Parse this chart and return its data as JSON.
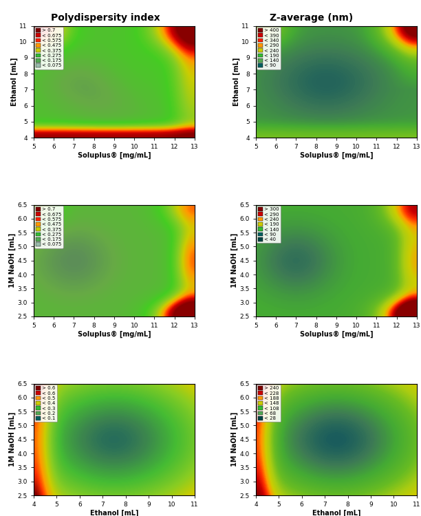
{
  "title_left": "Polydispersity index",
  "title_right": "Z-average (nm)",
  "plots": [
    {
      "row": 0,
      "col": 0,
      "xlabel": "Soluplus® [mg/mL]",
      "ylabel": "Ethanol [mL]",
      "xrange": [
        5,
        13
      ],
      "yrange": [
        4,
        11
      ],
      "xticks": [
        5,
        6,
        7,
        8,
        9,
        10,
        11,
        12,
        13
      ],
      "yticks": [
        4,
        5,
        6,
        7,
        8,
        9,
        10,
        11
      ],
      "legend_labels": [
        "> 0.7",
        "< 0.675",
        "< 0.575",
        "< 0.475",
        "< 0.375",
        "< 0.275",
        "< 0.175",
        "< 0.075"
      ],
      "legend_colors": [
        "#800000",
        "#CC0000",
        "#FF2200",
        "#FF9900",
        "#CCCC00",
        "#33BB33",
        "#55AA55",
        "#99BBAA"
      ],
      "surface_type": "PDI_soluplus_ethanol",
      "vmin": 0.0,
      "vmax": 0.8
    },
    {
      "row": 0,
      "col": 1,
      "xlabel": "Soluplus® [mg/mL]",
      "ylabel": "Ethanol [mL]",
      "xrange": [
        5,
        13
      ],
      "yrange": [
        4,
        11
      ],
      "xticks": [
        5,
        6,
        7,
        8,
        9,
        10,
        11,
        12,
        13
      ],
      "yticks": [
        4,
        5,
        6,
        7,
        8,
        9,
        10,
        11
      ],
      "legend_labels": [
        "> 400",
        "< 390",
        "< 340",
        "< 290",
        "< 240",
        "< 190",
        "< 140",
        "< 90"
      ],
      "legend_colors": [
        "#800000",
        "#CC0000",
        "#FF2200",
        "#FF9900",
        "#CCCC00",
        "#33BB33",
        "#55AA55",
        "#006060"
      ],
      "surface_type": "Zavg_soluplus_ethanol",
      "vmin": 60,
      "vmax": 460
    },
    {
      "row": 1,
      "col": 0,
      "xlabel": "Soluplus® [mg/mL]",
      "ylabel": "1M NaOH [mL]",
      "xrange": [
        5,
        13
      ],
      "yrange": [
        2.5,
        6.5
      ],
      "xticks": [
        5,
        6,
        7,
        8,
        9,
        10,
        11,
        12,
        13
      ],
      "yticks": [
        2.5,
        3,
        3.5,
        4,
        4.5,
        5,
        5.5,
        6,
        6.5
      ],
      "legend_labels": [
        "> 0.7",
        "< 0.675",
        "< 0.575",
        "< 0.475",
        "< 0.375",
        "< 0.275",
        "< 0.175",
        "< 0.075"
      ],
      "legend_colors": [
        "#800000",
        "#CC0000",
        "#FF2200",
        "#FF9900",
        "#CCCC00",
        "#33BB33",
        "#55AA55",
        "#99BBAA"
      ],
      "surface_type": "PDI_soluplus_naoh",
      "vmin": 0.0,
      "vmax": 0.8
    },
    {
      "row": 1,
      "col": 1,
      "xlabel": "Soluplus® [mg/mL]",
      "ylabel": "1M NaOH [mL]",
      "xrange": [
        5,
        13
      ],
      "yrange": [
        2.5,
        6.5
      ],
      "xticks": [
        5,
        6,
        7,
        8,
        9,
        10,
        11,
        12,
        13
      ],
      "yticks": [
        2.5,
        3,
        3.5,
        4,
        4.5,
        5,
        5.5,
        6,
        6.5
      ],
      "legend_labels": [
        "> 300",
        "< 290",
        "< 240",
        "< 190",
        "< 140",
        "< 90",
        "< 40"
      ],
      "legend_colors": [
        "#800000",
        "#CC0000",
        "#FF9900",
        "#CCCC00",
        "#33BB33",
        "#006060",
        "#004444"
      ],
      "surface_type": "Zavg_soluplus_naoh",
      "vmin": 20,
      "vmax": 320
    },
    {
      "row": 2,
      "col": 0,
      "xlabel": "Ethanol [mL]",
      "ylabel": "1M NaOH [mL]",
      "xrange": [
        4,
        11
      ],
      "yrange": [
        2.5,
        6.5
      ],
      "xticks": [
        4,
        5,
        6,
        7,
        8,
        9,
        10,
        11
      ],
      "yticks": [
        2.5,
        3,
        3.5,
        4,
        4.5,
        5,
        5.5,
        6,
        6.5
      ],
      "legend_labels": [
        "> 0.6",
        "< 0.6",
        "< 0.5",
        "< 0.4",
        "< 0.3",
        "< 0.2",
        "< 0.1"
      ],
      "legend_colors": [
        "#800000",
        "#CC0000",
        "#FF9900",
        "#CCCC00",
        "#33BB33",
        "#55AA55",
        "#006060"
      ],
      "surface_type": "PDI_ethanol_naoh",
      "vmin": 0.0,
      "vmax": 0.7
    },
    {
      "row": 2,
      "col": 1,
      "xlabel": "Ethanol [mL]",
      "ylabel": "1M NaOH [mL]",
      "xrange": [
        4,
        11
      ],
      "yrange": [
        2.5,
        6.5
      ],
      "xticks": [
        4,
        5,
        6,
        7,
        8,
        9,
        10,
        11
      ],
      "yticks": [
        2.5,
        3,
        3.5,
        4,
        4.5,
        5,
        5.5,
        6,
        6.5
      ],
      "legend_labels": [
        "> 240",
        "< 228",
        "< 188",
        "< 148",
        "< 108",
        "< 68",
        "< 28"
      ],
      "legend_colors": [
        "#800000",
        "#CC0000",
        "#FF9900",
        "#CCCC00",
        "#33BB33",
        "#55AA55",
        "#004444"
      ],
      "surface_type": "Zavg_ethanol_naoh",
      "vmin": 20,
      "vmax": 260
    }
  ]
}
